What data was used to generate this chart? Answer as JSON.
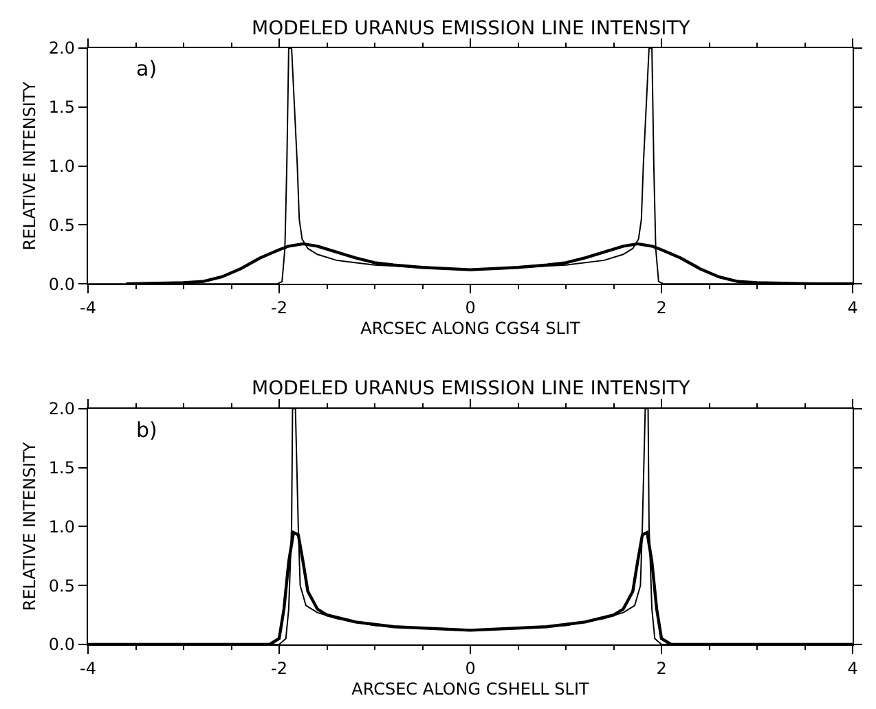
{
  "chart_data": [
    {
      "type": "line",
      "title": "MODELED URANUS EMISSION LINE INTENSITY",
      "xlabel": "ARCSEC ALONG CGS4 SLIT",
      "ylabel": "RELATIVE INTENSITY",
      "annotations": [
        "a)"
      ],
      "xlim": [
        -4,
        4
      ],
      "xticks": [
        -4,
        -2,
        0,
        2,
        4
      ],
      "ylim": [
        0,
        2
      ],
      "yticks": [
        {
          "value": 0,
          "label": "0.0"
        },
        {
          "value": 0.5,
          "label": "0.5"
        },
        {
          "value": 1,
          "label": "1.0"
        },
        {
          "value": 1.5,
          "label": "1.5"
        },
        {
          "value": 2,
          "label": "2.0"
        }
      ],
      "marker": "none",
      "line_style": "solid",
      "series": [
        {
          "color": "#000000",
          "x": [
            -4,
            -2.02,
            -1.97,
            -1.94,
            -1.92,
            -1.9,
            -1.87,
            -1.84,
            -1.81,
            -1.79,
            -1.76,
            -1.7,
            -1.6,
            -1.4,
            -1.0,
            -0.5,
            0,
            0.5,
            1.0,
            1.4,
            1.6,
            1.7,
            1.76,
            1.79,
            1.81,
            1.84,
            1.87,
            1.9,
            1.92,
            1.94,
            1.97,
            2.02,
            4
          ],
          "values": [
            0,
            0,
            0.02,
            0.3,
            1.0,
            2.0,
            2.0,
            1.5,
            1.0,
            0.55,
            0.38,
            0.3,
            0.25,
            0.2,
            0.16,
            0.14,
            0.12,
            0.14,
            0.16,
            0.2,
            0.25,
            0.3,
            0.38,
            0.55,
            1.0,
            1.5,
            2.0,
            2.0,
            1.0,
            0.3,
            0.02,
            0,
            0
          ]
        },
        {
          "color": "#000000",
          "x": [
            -3.6,
            -3.0,
            -2.8,
            -2.6,
            -2.4,
            -2.2,
            -2.0,
            -1.9,
            -1.75,
            -1.6,
            -1.4,
            -1.2,
            -1.0,
            -0.8,
            -0.5,
            0,
            0.5,
            0.8,
            1.0,
            1.2,
            1.4,
            1.6,
            1.75,
            1.9,
            2.0,
            2.2,
            2.4,
            2.6,
            2.8,
            3.0,
            3.6,
            4
          ],
          "values": [
            0,
            0.01,
            0.02,
            0.06,
            0.13,
            0.22,
            0.29,
            0.32,
            0.34,
            0.32,
            0.27,
            0.22,
            0.18,
            0.16,
            0.14,
            0.12,
            0.14,
            0.16,
            0.18,
            0.22,
            0.27,
            0.32,
            0.34,
            0.32,
            0.29,
            0.22,
            0.13,
            0.06,
            0.02,
            0.01,
            0,
            0
          ]
        }
      ]
    },
    {
      "type": "line",
      "title": "MODELED URANUS EMISSION LINE INTENSITY",
      "xlabel": "ARCSEC ALONG CSHELL SLIT",
      "ylabel": "RELATIVE INTENSITY",
      "annotations": [
        "b)"
      ],
      "xlim": [
        -4,
        4
      ],
      "xticks": [
        -4,
        -2,
        0,
        2,
        4
      ],
      "ylim": [
        0,
        2
      ],
      "yticks": [
        {
          "value": 0,
          "label": "0.0"
        },
        {
          "value": 0.5,
          "label": "0.5"
        },
        {
          "value": 1,
          "label": "1.0"
        },
        {
          "value": 1.5,
          "label": "1.5"
        },
        {
          "value": 2,
          "label": "2.0"
        }
      ],
      "marker": "none",
      "line_style": "solid",
      "series": [
        {
          "color": "#000000",
          "x": [
            -4,
            -2.0,
            -1.93,
            -1.9,
            -1.87,
            -1.86,
            -1.83,
            -1.8,
            -1.78,
            -1.72,
            -1.6,
            -1.4,
            -1.0,
            -0.5,
            0,
            0.5,
            1.0,
            1.4,
            1.6,
            1.72,
            1.78,
            1.8,
            1.83,
            1.86,
            1.87,
            1.9,
            1.93,
            2.0,
            4
          ],
          "values": [
            0,
            0,
            0.05,
            0.3,
            1.0,
            2.0,
            2.0,
            1.0,
            0.5,
            0.33,
            0.27,
            0.22,
            0.16,
            0.14,
            0.12,
            0.14,
            0.16,
            0.22,
            0.27,
            0.33,
            0.5,
            1.0,
            2.0,
            2.0,
            1.0,
            0.3,
            0.05,
            0,
            0
          ]
        },
        {
          "color": "#000000",
          "x": [
            -4,
            -2.1,
            -2.0,
            -1.95,
            -1.9,
            -1.85,
            -1.8,
            -1.75,
            -1.7,
            -1.6,
            -1.5,
            -1.2,
            -0.8,
            0,
            0.8,
            1.2,
            1.5,
            1.6,
            1.7,
            1.75,
            1.8,
            1.85,
            1.9,
            1.95,
            2.0,
            2.1,
            4
          ],
          "values": [
            0,
            0,
            0.05,
            0.3,
            0.7,
            0.95,
            0.93,
            0.7,
            0.45,
            0.3,
            0.25,
            0.19,
            0.15,
            0.12,
            0.15,
            0.19,
            0.25,
            0.3,
            0.45,
            0.7,
            0.93,
            0.95,
            0.7,
            0.3,
            0.05,
            0,
            0
          ]
        }
      ]
    }
  ]
}
